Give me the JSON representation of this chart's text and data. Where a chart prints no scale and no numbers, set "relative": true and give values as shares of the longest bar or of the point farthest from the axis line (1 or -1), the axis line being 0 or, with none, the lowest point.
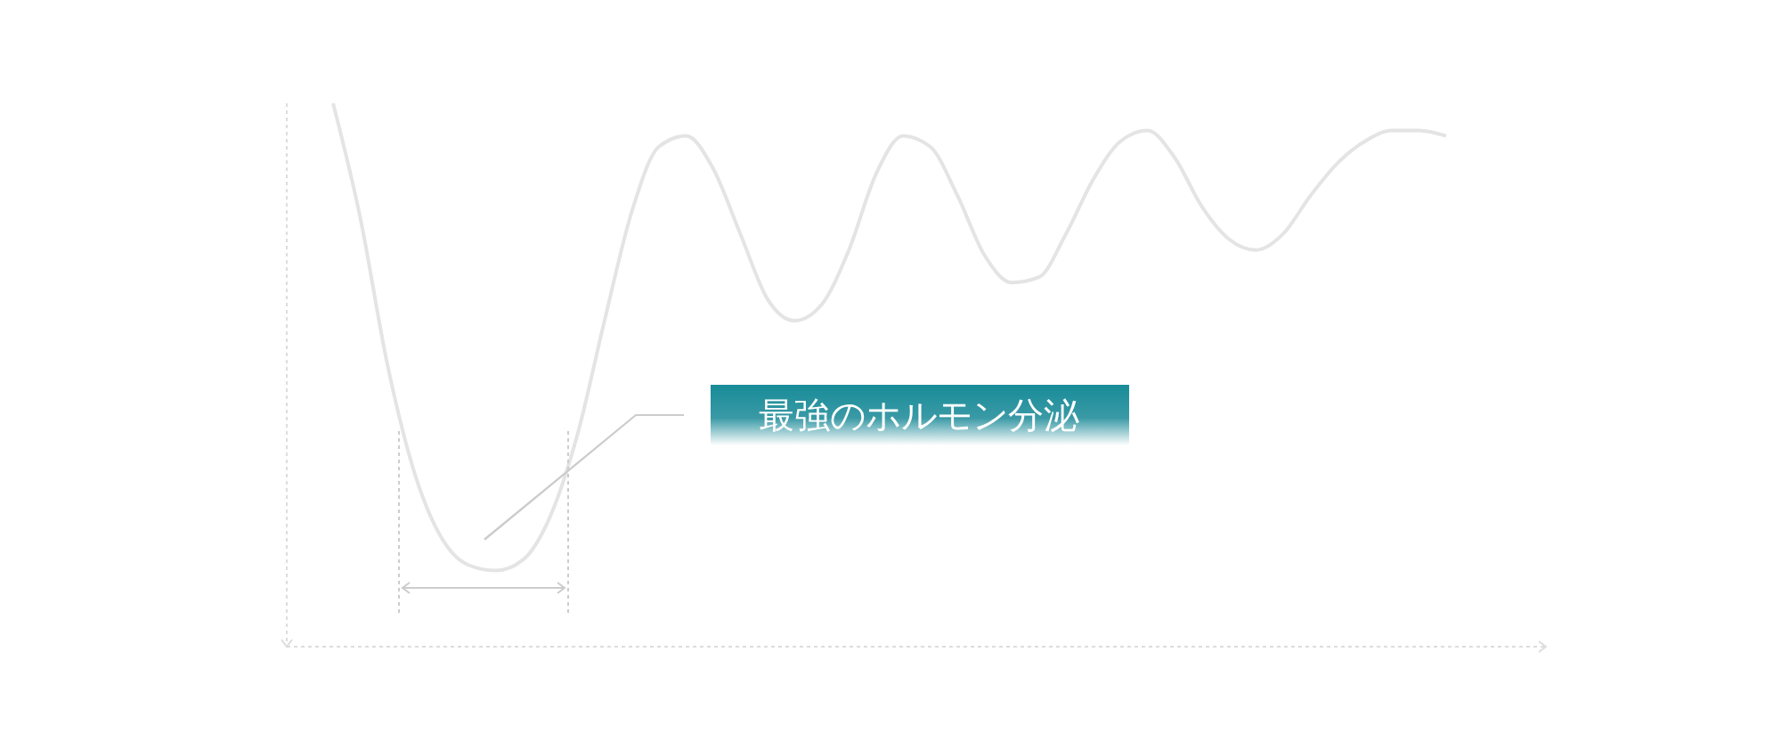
{
  "chart_data": {
    "type": "line",
    "relative": true,
    "marker": "none",
    "line_style": "solid",
    "categories": [
      null,
      null,
      null,
      null,
      null,
      null,
      null,
      null,
      null,
      null,
      null,
      null,
      null,
      null,
      null,
      null,
      null,
      null,
      null,
      null,
      null,
      null,
      null,
      null,
      null,
      null,
      null,
      null,
      null,
      null,
      null,
      null,
      null,
      null,
      null,
      null,
      null,
      null,
      null,
      null,
      null,
      null
    ],
    "series": [
      {
        "color": "#e4e4e4",
        "values": [
          1.0,
          0.79,
          0.52,
          0.32,
          0.2,
          0.15,
          0.14,
          0.16,
          0.24,
          0.39,
          0.6,
          0.8,
          0.92,
          0.94,
          0.88,
          0.76,
          0.64,
          0.6,
          0.63,
          0.73,
          0.87,
          0.94,
          0.92,
          0.83,
          0.72,
          0.67,
          0.68,
          0.76,
          0.86,
          0.93,
          0.95,
          0.9,
          0.81,
          0.75,
          0.73,
          0.76,
          0.83,
          0.89,
          0.93,
          0.95,
          0.95,
          0.94
        ]
      }
    ],
    "annotations": [
      "最強のホルモン分泌"
    ]
  }
}
